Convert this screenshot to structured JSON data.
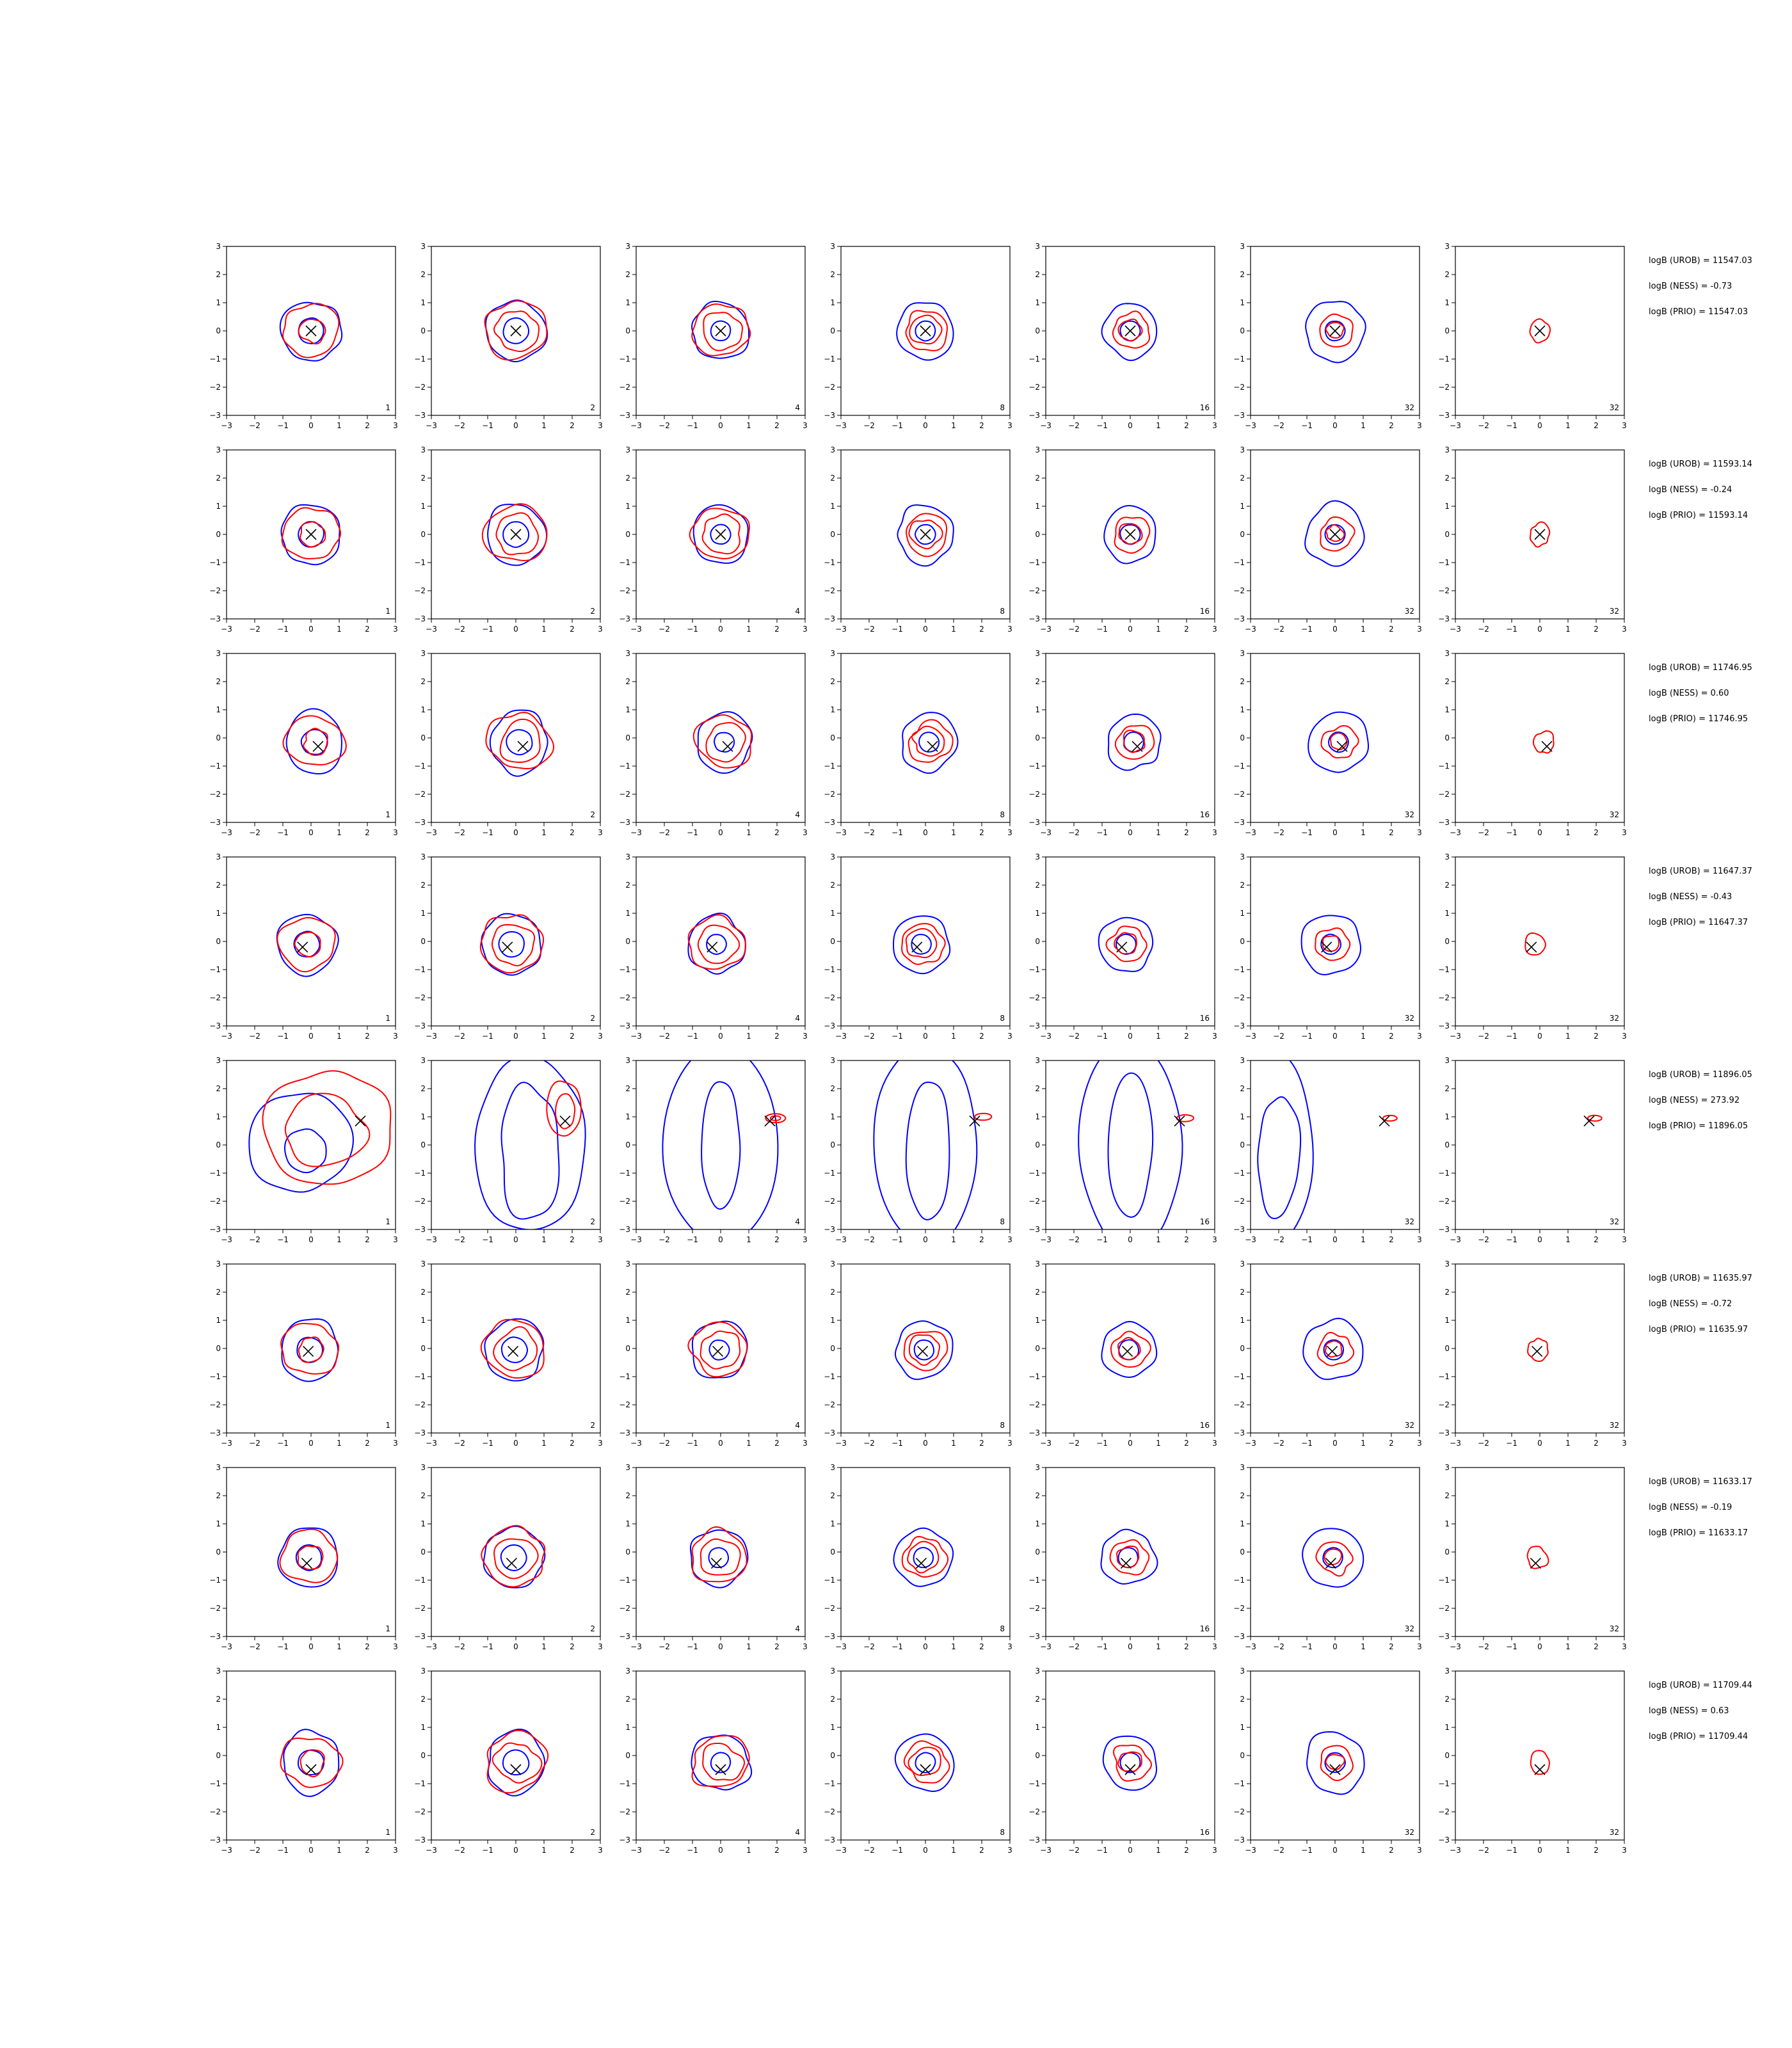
{
  "colors": {
    "background": "#ffffff",
    "axes": "#000000",
    "blue_contour": "#0000ff",
    "red_contour": "#ff0000",
    "marker": "#000000"
  },
  "chart_data": {
    "type": "contour-grid",
    "rows": 8,
    "cols": 7,
    "xlim": [
      -3,
      3
    ],
    "ylim": [
      -3,
      3
    ],
    "xticks": [
      -3,
      -2,
      -1,
      0,
      1,
      2,
      3
    ],
    "yticks": [
      -3,
      -2,
      -1,
      0,
      1,
      2,
      3
    ],
    "tick_labels": [
      "−3",
      "−2",
      "−1",
      "0",
      "1",
      "2",
      "3"
    ],
    "panel_labels": [
      "1",
      "2",
      "4",
      "8",
      "16",
      "32",
      "32"
    ],
    "rows_data": [
      {
        "marker": [
          0.0,
          0.0
        ],
        "annotations": [
          "logB (UROB) = 11547.03",
          "logB (NESS) = -0.73",
          "logB (PRIO) = 11547.03"
        ]
      },
      {
        "marker": [
          0.0,
          0.0
        ],
        "annotations": [
          "logB (UROB) = 11593.14",
          "logB (NESS) = -0.24",
          "logB (PRIO) = 11593.14"
        ]
      },
      {
        "marker": [
          0.25,
          -0.3
        ],
        "annotations": [
          "logB (UROB) = 11746.95",
          "logB (NESS) = 0.60",
          "logB (PRIO) = 11746.95"
        ]
      },
      {
        "marker": [
          -0.3,
          -0.2
        ],
        "annotations": [
          "logB (UROB) = 11647.37",
          "logB (NESS) = -0.43",
          "logB (PRIO) = 11647.37"
        ]
      },
      {
        "marker": [
          1.75,
          0.85
        ],
        "annotations": [
          "logB (UROB) = 11896.05",
          "logB (NESS) = 273.92",
          "logB (PRIO) = 11896.05"
        ]
      },
      {
        "marker": [
          -0.1,
          -0.1
        ],
        "annotations": [
          "logB (UROB) = 11635.97",
          "logB (NESS) = -0.72",
          "logB (PRIO) = 11635.97"
        ]
      },
      {
        "marker": [
          -0.15,
          -0.4
        ],
        "annotations": [
          "logB (UROB) = 11633.17",
          "logB (NESS) = -0.19",
          "logB (PRIO) = 11633.17"
        ]
      },
      {
        "marker": [
          0.0,
          -0.5
        ],
        "annotations": [
          "logB (UROB) = 11709.44",
          "logB (NESS) = 0.63",
          "logB (PRIO) = 11709.44"
        ]
      }
    ]
  }
}
